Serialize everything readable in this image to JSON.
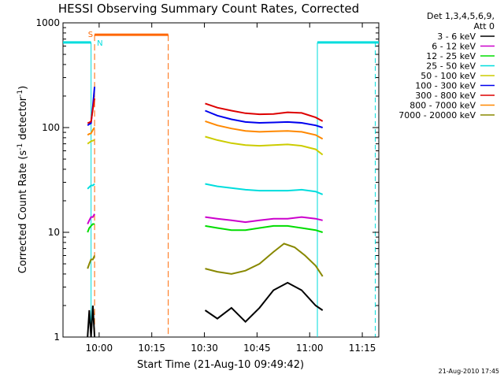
{
  "chart_data": {
    "type": "line",
    "title": "HESSI Observing Summary Count Rates, Corrected",
    "xlabel": "Start Time (21-Aug-10 09:49:42)",
    "ylabel_main": "Corrected Count Rate (s",
    "ylabel_sup1": "-1",
    "ylabel_mid": " detector",
    "ylabel_sup2": "-1",
    "ylabel_end": ")",
    "x_unit": "minutes after 09:49:42",
    "xlim": [
      0,
      90
    ],
    "ylim": [
      1,
      1000
    ],
    "yscale": "log",
    "xticks": [
      {
        "label": "10:00",
        "value": 10.3
      },
      {
        "label": "10:15",
        "value": 25.3
      },
      {
        "label": "10:30",
        "value": 40.3
      },
      {
        "label": "10:45",
        "value": 55.3
      },
      {
        "label": "11:00",
        "value": 70.3
      },
      {
        "label": "11:15",
        "value": 85.3
      }
    ],
    "yticks": [
      {
        "label": "1000",
        "value": 1000
      },
      {
        "label": "100",
        "value": 100
      },
      {
        "label": "10",
        "value": 10
      },
      {
        "label": "1",
        "value": 1
      }
    ],
    "legend_title_1": "Det 1,3,4,5,6,9,",
    "legend_title_2": "Att 0",
    "series": [
      {
        "name": "3 - 6 keV",
        "color": "#000000",
        "segments": [
          {
            "x": [
              7.0,
              7.5,
              8.0,
              8.5,
              9.0
            ],
            "y": [
              1,
              1.8,
              1,
              2.0,
              1
            ]
          },
          {
            "x": [
              40.5,
              44,
              48,
              52,
              56,
              60,
              64,
              68,
              72,
              74
            ],
            "y": [
              1.8,
              1.5,
              1.9,
              1.4,
              1.9,
              2.8,
              3.3,
              2.8,
              2.0,
              1.8
            ]
          }
        ]
      },
      {
        "name": "6 - 12 keV",
        "color": "#cc00cc",
        "segments": [
          {
            "x": [
              7.0,
              7.5,
              8.0,
              8.5,
              9.0
            ],
            "y": [
              12,
              13,
              14,
              14,
              15
            ]
          },
          {
            "x": [
              40.5,
              44,
              48,
              52,
              56,
              60,
              64,
              68,
              72,
              74
            ],
            "y": [
              14,
              13.5,
              13.0,
              12.5,
              13.0,
              13.5,
              13.5,
              14,
              13.5,
              13
            ]
          }
        ]
      },
      {
        "name": "12 - 25 keV",
        "color": "#00dd00",
        "segments": [
          {
            "x": [
              7.0,
              7.5,
              8.0,
              8.5,
              9.0
            ],
            "y": [
              10,
              11,
              11.5,
              12,
              12
            ]
          },
          {
            "x": [
              40.5,
              44,
              48,
              52,
              56,
              60,
              64,
              68,
              72,
              74
            ],
            "y": [
              11.5,
              11,
              10.5,
              10.5,
              11,
              11.5,
              11.5,
              11,
              10.5,
              10
            ]
          }
        ]
      },
      {
        "name": "25 - 50 keV",
        "color": "#00dddd",
        "segments": [
          {
            "x": [
              7.0,
              7.5,
              8.0,
              8.5,
              9.0
            ],
            "y": [
              26,
              27,
              28,
              28,
              29
            ]
          },
          {
            "x": [
              40.5,
              44,
              48,
              52,
              56,
              60,
              64,
              68,
              72,
              74
            ],
            "y": [
              29,
              27.5,
              26.5,
              25.5,
              25,
              25,
              25,
              25.5,
              24.5,
              23
            ]
          }
        ]
      },
      {
        "name": "50 - 100 keV",
        "color": "#cccc00",
        "segments": [
          {
            "x": [
              7.0,
              7.5,
              8.0,
              8.5,
              9.0
            ],
            "y": [
              70,
              72,
              74,
              75,
              76
            ]
          },
          {
            "x": [
              40.5,
              44,
              48,
              52,
              56,
              60,
              64,
              68,
              72,
              74
            ],
            "y": [
              82,
              76,
              71,
              68,
              67,
              68,
              69,
              67,
              62,
              55
            ]
          }
        ]
      },
      {
        "name": "100 - 300 keV",
        "color": "#0000ee",
        "segments": [
          {
            "x": [
              7.0,
              7.5,
              8.0,
              8.5,
              9.0
            ],
            "y": [
              105,
              108,
              110,
              160,
              245
            ]
          },
          {
            "x": [
              40.5,
              44,
              48,
              52,
              56,
              60,
              64,
              68,
              72,
              74
            ],
            "y": [
              145,
              130,
              120,
              113,
              111,
              112,
              113,
              111,
              105,
              100
            ]
          }
        ]
      },
      {
        "name": "300 - 800 keV",
        "color": "#dd0000",
        "segments": [
          {
            "x": [
              7.0,
              7.5,
              8.0,
              8.5,
              9.0
            ],
            "y": [
              110,
              112,
              114,
              150,
              190
            ]
          },
          {
            "x": [
              40.5,
              44,
              48,
              52,
              56,
              60,
              64,
              68,
              72,
              74
            ],
            "y": [
              170,
              155,
              145,
              137,
              134,
              135,
              140,
              138,
              125,
              115
            ]
          }
        ]
      },
      {
        "name": "800 - 7000 keV",
        "color": "#ff8800",
        "segments": [
          {
            "x": [
              7.0,
              7.5,
              8.0,
              8.5,
              9.0
            ],
            "y": [
              85,
              87,
              88,
              95,
              100
            ]
          },
          {
            "x": [
              40.5,
              44,
              48,
              52,
              56,
              60,
              64,
              68,
              72,
              74
            ],
            "y": [
              115,
              105,
              98,
              93,
              91,
              92,
              93,
              91,
              85,
              78
            ]
          }
        ]
      },
      {
        "name": "7000 - 20000 keV",
        "color": "#888800",
        "segments": [
          {
            "x": [
              7.0,
              7.5,
              8.0,
              8.5,
              9.0
            ],
            "y": [
              4.5,
              5.0,
              5.5,
              5.5,
              6.0
            ]
          },
          {
            "x": [
              40.5,
              44,
              48,
              52,
              56,
              60,
              63,
              66,
              69,
              72,
              74
            ],
            "y": [
              4.5,
              4.2,
              4.0,
              4.3,
              5.0,
              6.5,
              7.8,
              7.2,
              6.0,
              4.8,
              3.8
            ]
          }
        ]
      }
    ],
    "attenuator_bars": {
      "color": "#00dddd",
      "level": 650,
      "segments": [
        [
          0,
          8.0
        ],
        [
          72.5,
          90
        ]
      ],
      "vlines": [
        8.0,
        72.5
      ],
      "vline_dashed": 89
    },
    "saa_night_bar": {
      "color": "#ff6600",
      "level": 770,
      "segment": [
        9.0,
        30.0
      ],
      "label_s": "S",
      "label_n": "N",
      "vline_dashed_1": 9.0,
      "vline_dashed_2": 30.0
    },
    "grid": false,
    "legend_position": "right"
  },
  "footer_timestamp": "21-Aug-2010 17:45"
}
